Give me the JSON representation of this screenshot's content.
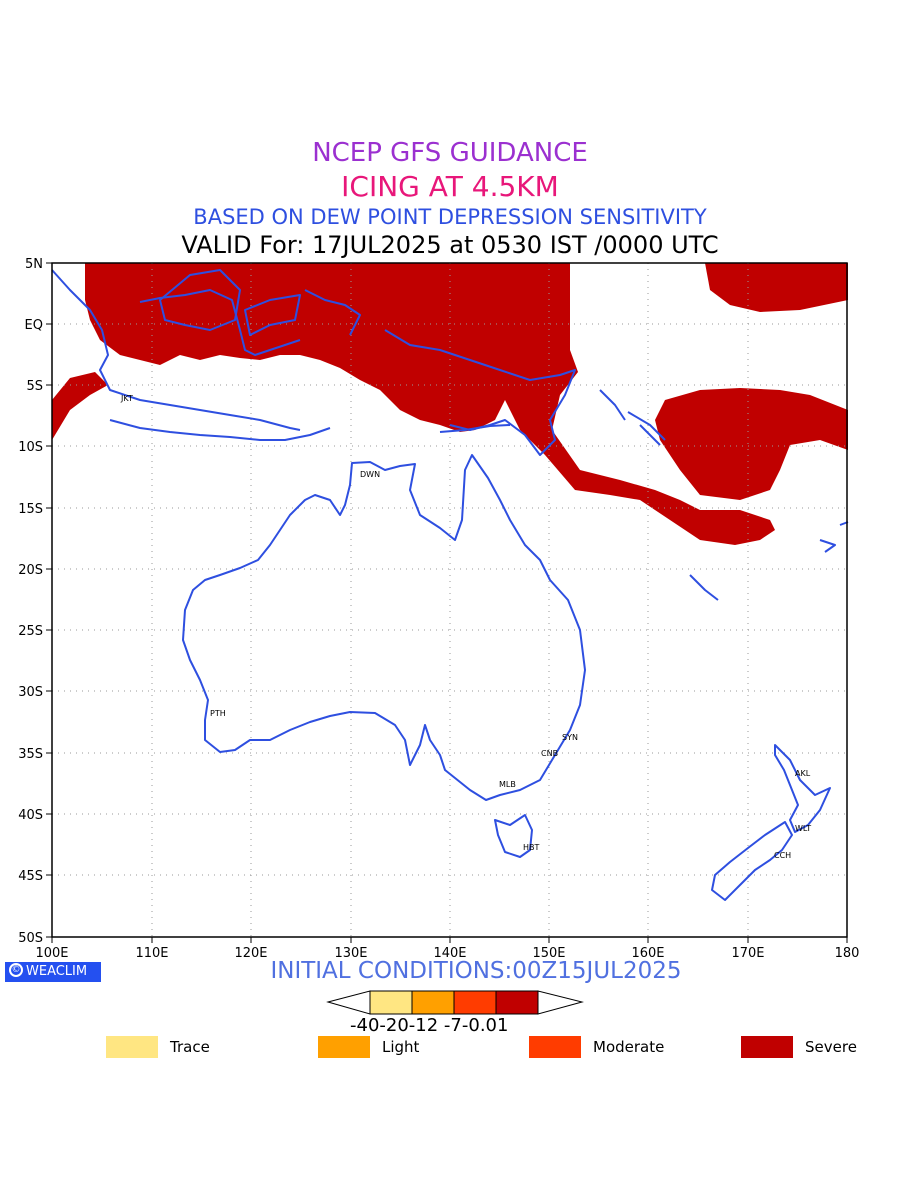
{
  "titles": {
    "line1": "NCEP GFS GUIDANCE",
    "line2": "ICING AT 4.5KM",
    "line3": "BASED ON DEW POINT DEPRESSION SENSITIVITY",
    "line4": "VALID For: 17JUL2025 at 0530 IST /0000 UTC"
  },
  "axes": {
    "lon_labels": [
      "100E",
      "110E",
      "120E",
      "130E",
      "140E",
      "150E",
      "160E",
      "170E",
      "180"
    ],
    "lat_labels": [
      "5N",
      "EQ",
      "5S",
      "10S",
      "15S",
      "20S",
      "25S",
      "30S",
      "35S",
      "40S",
      "45S",
      "50S"
    ],
    "lon_range": [
      100,
      180
    ],
    "lat_range": [
      -50,
      5
    ],
    "grid": true
  },
  "cities": [
    {
      "code": "JKT",
      "lon": 106.8,
      "lat": -6.2
    },
    {
      "code": "DWN",
      "lon": 130.8,
      "lat": -12.5
    },
    {
      "code": "PTH",
      "lon": 115.9,
      "lat": -31.9
    },
    {
      "code": "SYN",
      "lon": 151.2,
      "lat": -33.9
    },
    {
      "code": "CNB",
      "lon": 149.1,
      "lat": -35.3
    },
    {
      "code": "MLB",
      "lon": 145.0,
      "lat": -37.8
    },
    {
      "code": "HBT",
      "lon": 147.3,
      "lat": -42.9
    },
    {
      "code": "AKL",
      "lon": 174.8,
      "lat": -36.8
    },
    {
      "code": "WLT",
      "lon": 174.8,
      "lat": -41.3
    },
    {
      "code": "CCH",
      "lon": 172.6,
      "lat": -43.5
    }
  ],
  "footer": {
    "brand": "WEACLIM",
    "initial": "INITIAL CONDITIONS:00Z15JUL2025"
  },
  "colorbar": {
    "ticks": "-40-20-12 -7-0.01",
    "colors": [
      "#ffe682",
      "#ffa000",
      "#ff3c00",
      "#c00000"
    ]
  },
  "legend": [
    {
      "label": "Trace",
      "color": "#ffe682"
    },
    {
      "label": "Light",
      "color": "#ffa000"
    },
    {
      "label": "Moderate",
      "color": "#ff3c00"
    },
    {
      "label": "Severe",
      "color": "#c00000"
    }
  ],
  "colors": {
    "coast": "#2e4fe0",
    "severe": "#c00000"
  }
}
